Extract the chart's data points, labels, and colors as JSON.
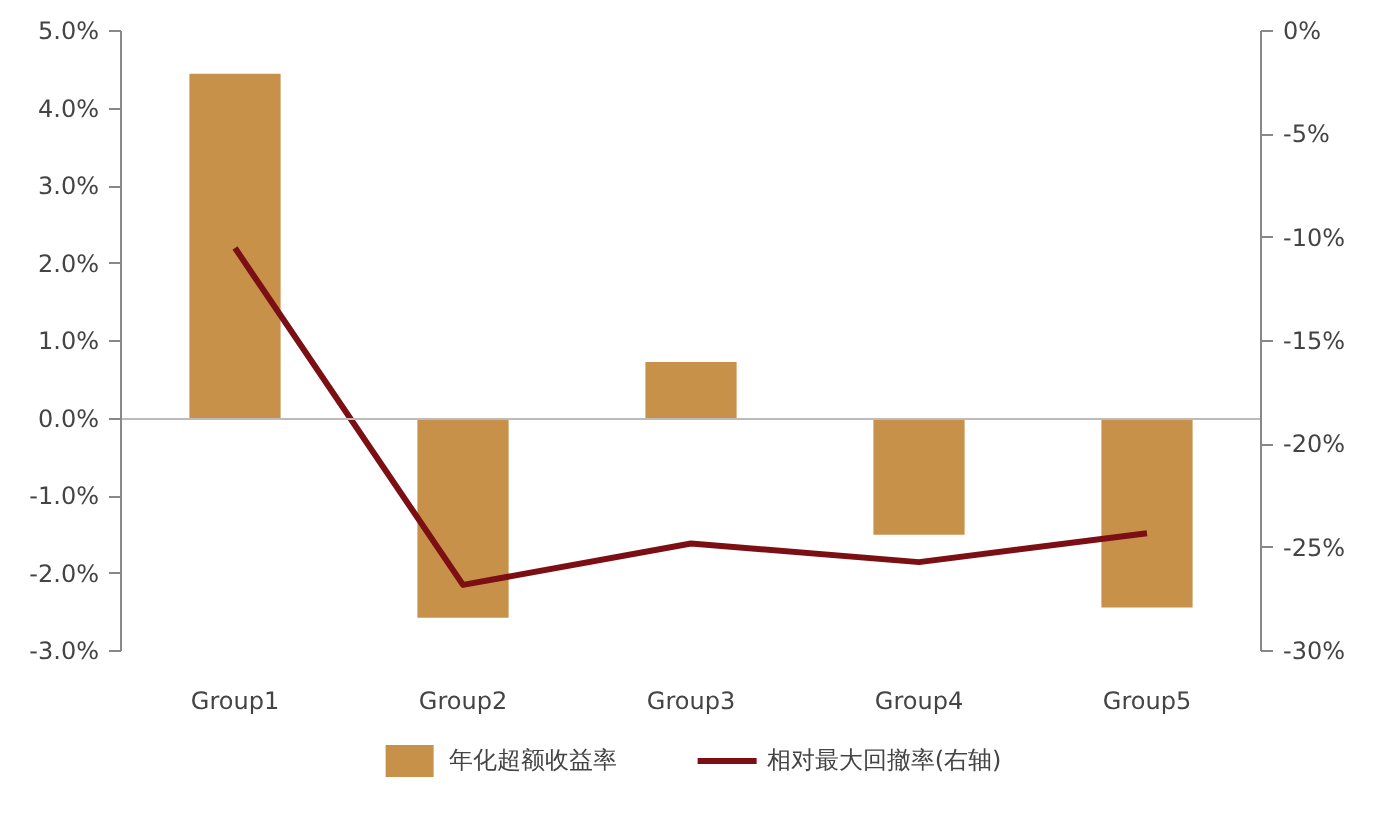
{
  "chart_data": {
    "type": "bar",
    "categories": [
      "Group1",
      "Group2",
      "Group3",
      "Group4",
      "Group5"
    ],
    "series": [
      {
        "name": "年化超额收益率",
        "color": "#c8914a",
        "values": [
          4.45,
          -2.57,
          0.73,
          -1.5,
          -2.44
        ]
      },
      {
        "name": "相对最大回撤率(右轴)",
        "type": "line",
        "axis": "y2",
        "color": "#7b0f14",
        "values": [
          -10.5,
          -26.8,
          -24.8,
          -25.7,
          -24.3
        ]
      }
    ],
    "ylim": [
      -3,
      5
    ],
    "yticks": [
      {
        "value": -3,
        "label": "-3.0%"
      },
      {
        "value": -2,
        "label": "-2.0%"
      },
      {
        "value": -1,
        "label": "-1.0%"
      },
      {
        "value": 0,
        "label": "0.0%"
      },
      {
        "value": 1,
        "label": "1.0%"
      },
      {
        "value": 2,
        "label": "2.0%"
      },
      {
        "value": 3,
        "label": "3.0%"
      },
      {
        "value": 4,
        "label": "4.0%"
      },
      {
        "value": 5,
        "label": "5.0%"
      }
    ],
    "y2lim": [
      -30,
      0
    ],
    "y2ticks": [
      {
        "value": -30,
        "label": "-30%"
      },
      {
        "value": -25,
        "label": "-25%"
      },
      {
        "value": -20,
        "label": "-20%"
      },
      {
        "value": -15,
        "label": "-15%"
      },
      {
        "value": -10,
        "label": "-10%"
      },
      {
        "value": -5,
        "label": "-5%"
      },
      {
        "value": 0,
        "label": "0%"
      }
    ],
    "legend": "bottom",
    "marker": "none",
    "line_style": "solid"
  }
}
